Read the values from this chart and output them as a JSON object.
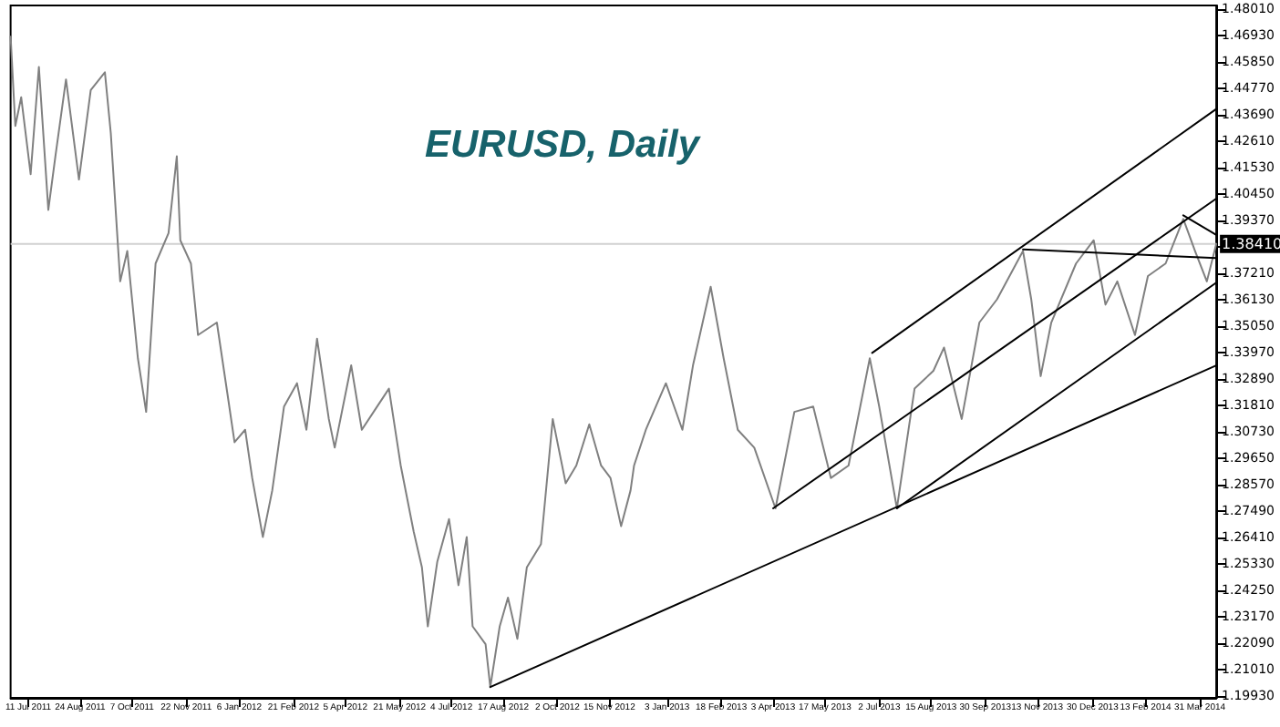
{
  "chart_data": {
    "type": "line",
    "title": "EURUSD, Daily",
    "marker": "none",
    "line_style": "solid",
    "grid": false,
    "xlim": [
      "2011-06-26",
      "2014-04-14"
    ],
    "xticks": [
      {
        "value": "2011-07-11",
        "label": "11 Jul 2011"
      },
      {
        "value": "2011-08-24",
        "label": "24 Aug 2011"
      },
      {
        "value": "2011-10-07",
        "label": "7 Oct 2011"
      },
      {
        "value": "2011-11-22",
        "label": "22 Nov 2011"
      },
      {
        "value": "2012-01-06",
        "label": "6 Jan 2012"
      },
      {
        "value": "2012-02-21",
        "label": "21 Feb 2012"
      },
      {
        "value": "2012-04-05",
        "label": "5 Apr 2012"
      },
      {
        "value": "2012-05-21",
        "label": "21 May 2012"
      },
      {
        "value": "2012-07-04",
        "label": "4 Jul 2012"
      },
      {
        "value": "2012-08-17",
        "label": "17 Aug 2012"
      },
      {
        "value": "2012-10-02",
        "label": "2 Oct 2012"
      },
      {
        "value": "2012-11-15",
        "label": "15 Nov 2012"
      },
      {
        "value": "2013-01-03",
        "label": "3 Jan 2013"
      },
      {
        "value": "2013-02-18",
        "label": "18 Feb 2013"
      },
      {
        "value": "2013-04-03",
        "label": "3 Apr 2013"
      },
      {
        "value": "2013-05-17",
        "label": "17 May 2013"
      },
      {
        "value": "2013-07-02",
        "label": "2 Jul 2013"
      },
      {
        "value": "2013-08-15",
        "label": "15 Aug 2013"
      },
      {
        "value": "2013-09-30",
        "label": "30 Sep 2013"
      },
      {
        "value": "2013-11-13",
        "label": "13 Nov 2013"
      },
      {
        "value": "2013-12-30",
        "label": "30 Dec 2013"
      },
      {
        "value": "2014-02-13",
        "label": "13 Feb 2014"
      },
      {
        "value": "2014-03-31",
        "label": "31 Mar 2014"
      }
    ],
    "ylim": [
      1.1987,
      1.4815
    ],
    "yticks": [
      {
        "value": 1.1993,
        "label": "1.19930"
      },
      {
        "value": 1.2101,
        "label": "1.21010"
      },
      {
        "value": 1.2209,
        "label": "1.22090"
      },
      {
        "value": 1.2317,
        "label": "1.23170"
      },
      {
        "value": 1.2425,
        "label": "1.24250"
      },
      {
        "value": 1.2533,
        "label": "1.25330"
      },
      {
        "value": 1.2641,
        "label": "1.26410"
      },
      {
        "value": 1.2749,
        "label": "1.27490"
      },
      {
        "value": 1.2857,
        "label": "1.28570"
      },
      {
        "value": 1.2965,
        "label": "1.29650"
      },
      {
        "value": 1.3073,
        "label": "1.30730"
      },
      {
        "value": 1.3181,
        "label": "1.31810"
      },
      {
        "value": 1.3289,
        "label": "1.32890"
      },
      {
        "value": 1.3397,
        "label": "1.33970"
      },
      {
        "value": 1.3505,
        "label": "1.35050"
      },
      {
        "value": 1.3613,
        "label": "1.36130"
      },
      {
        "value": 1.3721,
        "label": "1.37210"
      },
      {
        "value": 1.3829,
        "label": null
      },
      {
        "value": 1.3937,
        "label": "1.39370"
      },
      {
        "value": 1.4045,
        "label": "1.40450"
      },
      {
        "value": 1.4153,
        "label": "1.41530"
      },
      {
        "value": 1.4261,
        "label": "1.42610"
      },
      {
        "value": 1.4369,
        "label": "1.43690"
      },
      {
        "value": 1.4477,
        "label": "1.44770"
      },
      {
        "value": 1.4585,
        "label": "1.45850"
      },
      {
        "value": 1.4693,
        "label": "1.46930"
      },
      {
        "value": 1.4801,
        "label": "1.48010"
      }
    ],
    "ref_lines": [
      {
        "axis": "y",
        "value": 1.3841,
        "label": "1.38410",
        "color": "#d0d0d0"
      }
    ],
    "series": [
      {
        "color": "#808080",
        "x": [
          "2011-06-26",
          "2011-06-30",
          "2011-07-05",
          "2011-07-13",
          "2011-07-20",
          "2011-07-28",
          "2011-08-03",
          "2011-08-12",
          "2011-08-23",
          "2011-09-02",
          "2011-09-14",
          "2011-09-19",
          "2011-09-27",
          "2011-10-03",
          "2011-10-12",
          "2011-10-19",
          "2011-10-27",
          "2011-11-07",
          "2011-11-14",
          "2011-11-17",
          "2011-11-26",
          "2011-12-02",
          "2011-12-18",
          "2011-12-27",
          "2012-01-02",
          "2012-01-11",
          "2012-01-17",
          "2012-01-26",
          "2012-02-03",
          "2012-02-13",
          "2012-02-24",
          "2012-03-03",
          "2012-03-12",
          "2012-03-22",
          "2012-03-27",
          "2012-04-10",
          "2012-04-19",
          "2012-04-29",
          "2012-05-12",
          "2012-05-22",
          "2012-06-02",
          "2012-06-09",
          "2012-06-14",
          "2012-06-22",
          "2012-07-02",
          "2012-07-10",
          "2012-07-17",
          "2012-07-22",
          "2012-08-02",
          "2012-08-06",
          "2012-08-14",
          "2012-08-21",
          "2012-08-29",
          "2012-09-06",
          "2012-09-18",
          "2012-09-28",
          "2012-10-09",
          "2012-10-18",
          "2012-10-29",
          "2012-11-08",
          "2012-11-16",
          "2012-11-25",
          "2012-12-03",
          "2012-12-06",
          "2012-12-16",
          "2013-01-02",
          "2013-01-16",
          "2013-01-25",
          "2013-02-09",
          "2013-02-20",
          "2013-03-04",
          "2013-03-18",
          "2013-04-05",
          "2013-04-21",
          "2013-05-07",
          "2013-05-22",
          "2013-06-06",
          "2013-06-24",
          "2013-07-02",
          "2013-07-17",
          "2013-08-01",
          "2013-08-17",
          "2013-08-26",
          "2013-09-10",
          "2013-09-25",
          "2013-10-10",
          "2013-11-01",
          "2013-11-08",
          "2013-11-16",
          "2013-11-25",
          "2013-12-16",
          "2013-12-31",
          "2014-01-10",
          "2014-01-20",
          "2014-02-04",
          "2014-02-15",
          "2014-03-02",
          "2014-03-17",
          "2014-03-27",
          "2014-04-06",
          "2014-04-14"
        ],
        "values": [
          1.4688,
          1.4323,
          1.444,
          1.4126,
          1.4564,
          1.398,
          1.4199,
          1.4513,
          1.4104,
          1.4469,
          1.4542,
          1.4294,
          1.3688,
          1.3812,
          1.3374,
          1.3155,
          1.3761,
          1.3885,
          1.4199,
          1.3856,
          1.3761,
          1.3469,
          1.352,
          1.3228,
          1.3031,
          1.3082,
          1.2885,
          1.2644,
          1.2834,
          1.3177,
          1.3272,
          1.3082,
          1.3454,
          1.3126,
          1.3009,
          1.3345,
          1.3082,
          1.3155,
          1.325,
          1.2936,
          1.2666,
          1.252,
          1.2279,
          1.2542,
          1.2717,
          1.2447,
          1.2644,
          1.2279,
          1.2206,
          1.2031,
          1.2279,
          1.2396,
          1.2228,
          1.252,
          1.2615,
          1.3126,
          1.2863,
          1.2936,
          1.3104,
          1.2936,
          1.2885,
          1.2688,
          1.2834,
          1.2936,
          1.3082,
          1.3272,
          1.3082,
          1.3345,
          1.3666,
          1.3374,
          1.3082,
          1.3009,
          1.2761,
          1.3155,
          1.3177,
          1.2885,
          1.2936,
          1.3374,
          1.3177,
          1.2761,
          1.325,
          1.3323,
          1.3418,
          1.3126,
          1.352,
          1.3615,
          1.3812,
          1.3615,
          1.3301,
          1.352,
          1.3761,
          1.3856,
          1.3593,
          1.3688,
          1.3469,
          1.371,
          1.3761,
          1.3943,
          1.3812,
          1.3688,
          1.3841
        ]
      },
      {
        "color": "#000000",
        "x": [
          "2012-08-06",
          "2014-04-14"
        ],
        "values": [
          1.2031,
          1.3345
        ]
      },
      {
        "color": "#000000",
        "x": [
          "2013-07-17",
          "2014-04-14"
        ],
        "values": [
          1.2761,
          1.3683
        ]
      },
      {
        "color": "#000000",
        "x": [
          "2013-04-03",
          "2014-04-14"
        ],
        "values": [
          1.2761,
          1.4026
        ]
      },
      {
        "color": "#000000",
        "x": [
          "2013-06-26",
          "2014-04-14"
        ],
        "values": [
          1.3396,
          1.4392
        ]
      },
      {
        "color": "#000000",
        "x": [
          "2013-11-01",
          "2014-04-14"
        ],
        "values": [
          1.3819,
          1.3783
        ]
      },
      {
        "color": "#000000",
        "x": [
          "2014-03-17",
          "2014-04-14"
        ],
        "values": [
          1.3958,
          1.3878
        ]
      }
    ]
  }
}
